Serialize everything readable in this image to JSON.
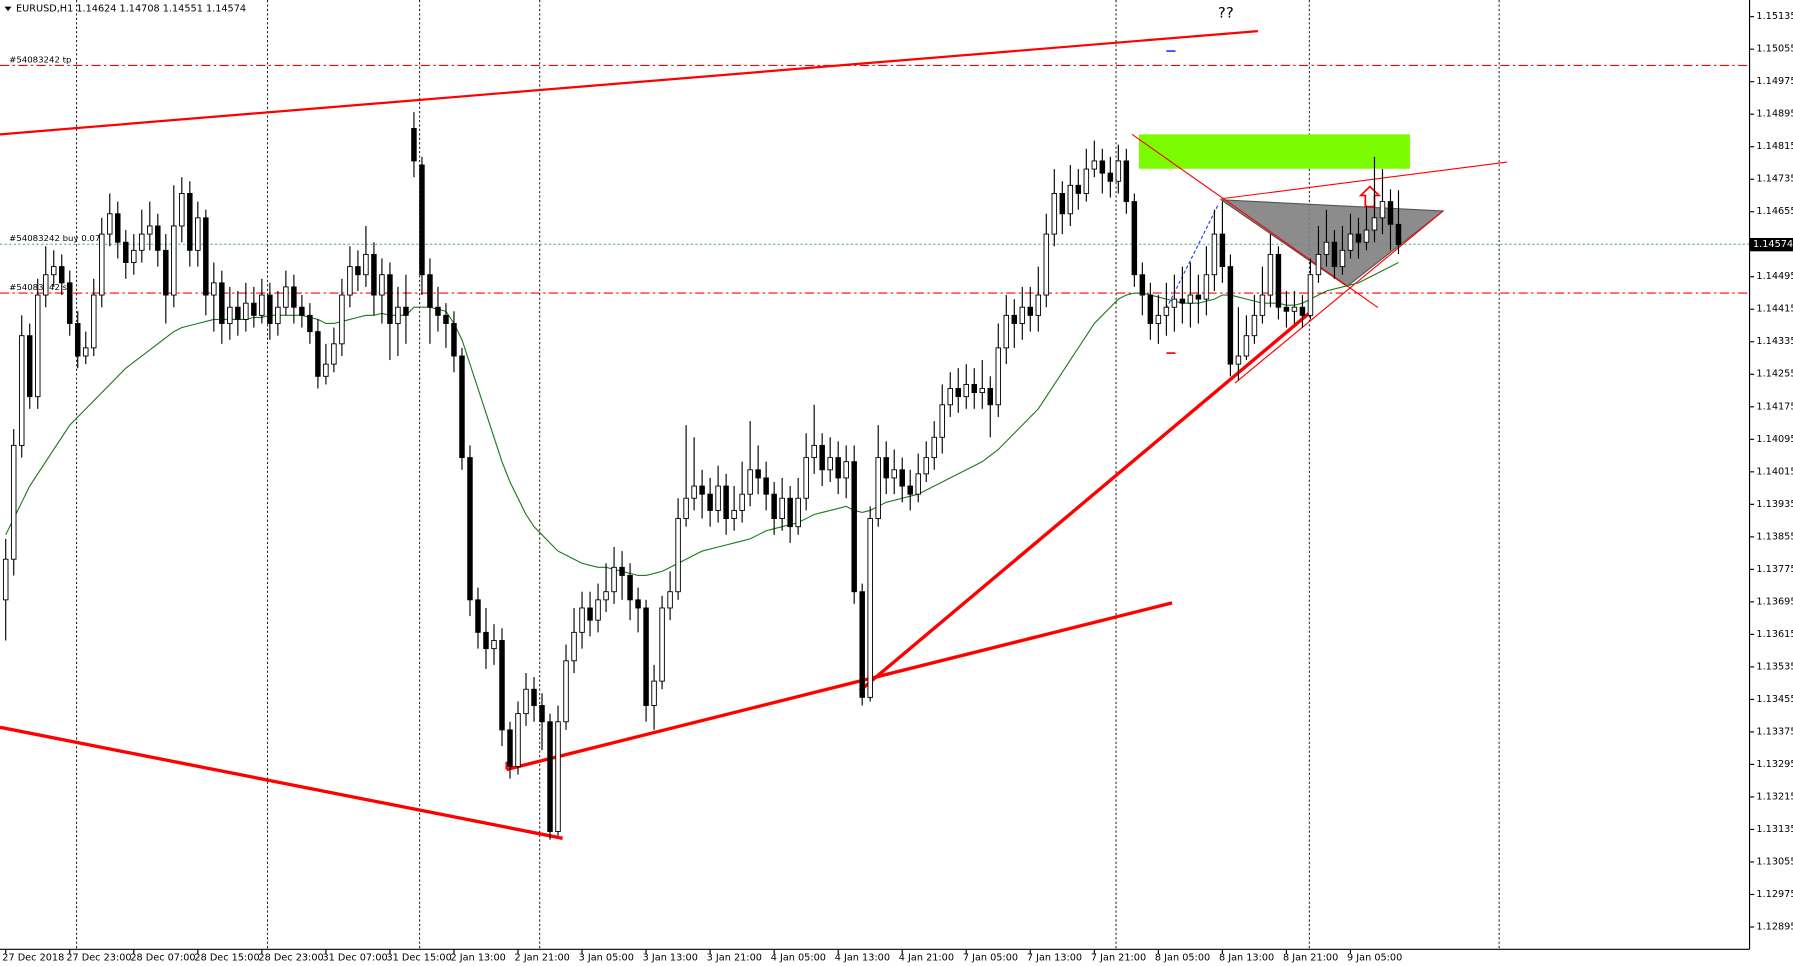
{
  "chart_data": {
    "type": "candlestick",
    "title": "EURUSD,H1  1.14624 1.14708 1.14551 1.14574",
    "annotation": "??",
    "categories": [
      "27 Dec 2018",
      null,
      null,
      null,
      null,
      null,
      null,
      null,
      "27 Dec 23:00",
      null,
      null,
      null,
      null,
      null,
      null,
      null,
      "28 Dec 07:00",
      null,
      null,
      null,
      null,
      null,
      null,
      null,
      "28 Dec 15:00",
      null,
      null,
      null,
      null,
      null,
      null,
      null,
      "28 Dec 23:00",
      null,
      null,
      null,
      null,
      null,
      null,
      null,
      "31 Dec 07:00",
      null,
      null,
      null,
      null,
      null,
      null,
      null,
      "31 Dec 15:00",
      null,
      null,
      null,
      null,
      null,
      null,
      null,
      "2 Jan 13:00",
      null,
      null,
      null,
      null,
      null,
      null,
      null,
      "2 Jan 21:00",
      null,
      null,
      null,
      null,
      null,
      null,
      null,
      "3 Jan 05:00",
      null,
      null,
      null,
      null,
      null,
      null,
      null,
      "3 Jan 13:00",
      null,
      null,
      null,
      null,
      null,
      null,
      null,
      "3 Jan 21:00",
      null,
      null,
      null,
      null,
      null,
      null,
      null,
      "4 Jan 05:00",
      null,
      null,
      null,
      null,
      null,
      null,
      null,
      "4 Jan 13:00",
      null,
      null,
      null,
      null,
      null,
      null,
      null,
      "4 Jan 21:00",
      null,
      null,
      null,
      null,
      null,
      null,
      null,
      "7 Jan 05:00",
      null,
      null,
      null,
      null,
      null,
      null,
      null,
      "7 Jan 13:00",
      null,
      null,
      null,
      null,
      null,
      null,
      null,
      "7 Jan 21:00",
      null,
      null,
      null,
      null,
      null,
      null,
      null,
      "8 Jan 05:00",
      null,
      null,
      null,
      null,
      null,
      null,
      null,
      "8 Jan 13:00",
      null,
      null,
      null,
      null,
      null,
      null,
      null,
      "8 Jan 21:00",
      null,
      null,
      null,
      null,
      null,
      null,
      null,
      "9 Jan 05:00",
      null,
      null,
      null,
      null,
      null,
      null
    ],
    "open": [
      1.137,
      1.138,
      1.1408,
      1.1435,
      1.142,
      1.1445,
      1.145,
      1.1452,
      1.1448,
      1.1438,
      1.143,
      1.1432,
      1.1445,
      1.146,
      1.1465,
      1.1458,
      1.1453,
      1.1456,
      1.146,
      1.1462,
      1.1456,
      1.1445,
      1.1462,
      1.147,
      1.1456,
      1.1464,
      1.1445,
      1.1448,
      1.1438,
      1.1442,
      1.1439,
      1.1443,
      1.144,
      1.1445,
      1.1438,
      1.1442,
      1.1447,
      1.1442,
      1.144,
      1.1436,
      1.1425,
      1.1428,
      1.1433,
      1.1445,
      1.1452,
      1.145,
      1.1455,
      1.1445,
      1.145,
      1.1438,
      1.1442,
      1.1486,
      1.1477,
      1.145,
      1.1442,
      1.144,
      1.1438,
      1.143,
      1.1405,
      1.137,
      1.1362,
      1.1358,
      1.136,
      1.1338,
      1.1329,
      1.1342,
      1.1348,
      1.1344,
      1.134,
      1.1313,
      1.134,
      1.1355,
      1.1362,
      1.1368,
      1.1365,
      1.137,
      1.1372,
      1.1378,
      1.1376,
      1.137,
      1.1368,
      1.1344,
      1.135,
      1.1368,
      1.1372,
      1.139,
      1.1395,
      1.1398,
      1.1396,
      1.1392,
      1.1398,
      1.139,
      1.1392,
      1.1396,
      1.1402,
      1.14,
      1.1396,
      1.139,
      1.1395,
      1.1388,
      1.1395,
      1.1405,
      1.1408,
      1.1402,
      1.1405,
      1.14,
      1.1404,
      1.1372,
      1.1346,
      1.139,
      1.1405,
      1.14,
      1.1402,
      1.1398,
      1.1396,
      1.1401,
      1.1405,
      1.141,
      1.1418,
      1.1422,
      1.142,
      1.1423,
      1.1421,
      1.1422,
      1.1418,
      1.1432,
      1.144,
      1.1438,
      1.1442,
      1.144,
      1.1445,
      1.146,
      1.147,
      1.1465,
      1.1472,
      1.147,
      1.1476,
      1.1478,
      1.1475,
      1.1473,
      1.1478,
      1.1468,
      1.145,
      1.1445,
      1.1438,
      1.144,
      1.1442,
      1.1444,
      1.1443,
      1.1445,
      1.1444,
      1.145,
      1.146,
      1.1452,
      1.1428,
      1.143,
      1.1435,
      1.144,
      1.1445,
      1.1455,
      1.1442,
      1.1441,
      1.1442,
      1.144,
      1.145,
      1.1455,
      1.1458,
      1.1452,
      1.1456,
      1.146,
      1.1458,
      1.1461,
      1.1464,
      1.1468,
      1.14624
    ],
    "high": [
      1.1385,
      1.1412,
      1.144,
      1.1438,
      1.1449,
      1.1457,
      1.1456,
      1.1455,
      1.1451,
      1.1441,
      1.1436,
      1.1449,
      1.1464,
      1.147,
      1.1468,
      1.1461,
      1.146,
      1.1466,
      1.1468,
      1.1465,
      1.146,
      1.1472,
      1.1474,
      1.1473,
      1.1468,
      1.1466,
      1.1453,
      1.1451,
      1.1447,
      1.1446,
      1.1448,
      1.1447,
      1.1449,
      1.1448,
      1.1446,
      1.1451,
      1.145,
      1.1445,
      1.1443,
      1.1439,
      1.1433,
      1.1437,
      1.1449,
      1.1457,
      1.1456,
      1.1462,
      1.1458,
      1.1454,
      1.1453,
      1.1447,
      1.145,
      1.149,
      1.1479,
      1.1454,
      1.1447,
      1.1443,
      1.1441,
      1.1432,
      1.1408,
      1.1373,
      1.1368,
      1.1364,
      1.1363,
      1.134,
      1.1345,
      1.1352,
      1.1351,
      1.1347,
      1.1342,
      1.1344,
      1.1359,
      1.1368,
      1.1372,
      1.1372,
      1.1374,
      1.1379,
      1.1383,
      1.1382,
      1.1379,
      1.1373,
      1.137,
      1.1354,
      1.1371,
      1.1377,
      1.1395,
      1.1413,
      1.141,
      1.1402,
      1.14,
      1.1403,
      1.1401,
      1.1398,
      1.1404,
      1.1414,
      1.1408,
      1.1404,
      1.1399,
      1.14,
      1.1398,
      1.14,
      1.1411,
      1.1418,
      1.1411,
      1.141,
      1.1409,
      1.1408,
      1.1408,
      1.1374,
      1.1393,
      1.1413,
      1.1409,
      1.1407,
      1.1405,
      1.1402,
      1.1406,
      1.1409,
      1.1414,
      1.1423,
      1.1426,
      1.1427,
      1.1428,
      1.1427,
      1.1429,
      1.1425,
      1.1438,
      1.1445,
      1.1444,
      1.1447,
      1.1447,
      1.1452,
      1.1465,
      1.1476,
      1.1473,
      1.1477,
      1.1476,
      1.1481,
      1.1483,
      1.1481,
      1.1479,
      1.1482,
      1.1481,
      1.147,
      1.1453,
      1.1448,
      1.1445,
      1.1448,
      1.145,
      1.1452,
      1.1453,
      1.145,
      1.1457,
      1.1466,
      1.1468,
      1.1455,
      1.1442,
      1.144,
      1.1445,
      1.1452,
      1.146,
      1.1457,
      1.1446,
      1.1446,
      1.1445,
      1.1454,
      1.1462,
      1.1466,
      1.1461,
      1.1462,
      1.1465,
      1.1464,
      1.1467,
      1.1479,
      1.1476,
      1.1471,
      1.14708
    ],
    "low": [
      1.136,
      1.1376,
      1.1405,
      1.1417,
      1.1417,
      1.1442,
      1.1447,
      1.1445,
      1.1435,
      1.1427,
      1.1428,
      1.143,
      1.1442,
      1.1457,
      1.1454,
      1.1449,
      1.145,
      1.1453,
      1.1456,
      1.1452,
      1.1438,
      1.1442,
      1.1458,
      1.1452,
      1.1452,
      1.144,
      1.1436,
      1.1433,
      1.1434,
      1.1435,
      1.1436,
      1.1437,
      1.1438,
      1.1434,
      1.1435,
      1.144,
      1.1438,
      1.1437,
      1.1433,
      1.1422,
      1.1423,
      1.1426,
      1.143,
      1.1442,
      1.1446,
      1.1447,
      1.144,
      1.1438,
      1.1429,
      1.143,
      1.1433,
      1.1474,
      1.1445,
      1.1433,
      1.1436,
      1.1432,
      1.1426,
      1.1402,
      1.1366,
      1.1358,
      1.1353,
      1.1354,
      1.1334,
      1.1326,
      1.1327,
      1.1339,
      1.134,
      1.1333,
      1.1311,
      1.1312,
      1.1338,
      1.1352,
      1.1358,
      1.1361,
      1.1362,
      1.1367,
      1.1369,
      1.137,
      1.1365,
      1.1362,
      1.134,
      1.1338,
      1.1348,
      1.1365,
      1.137,
      1.1388,
      1.1392,
      1.139,
      1.1388,
      1.1389,
      1.1386,
      1.1387,
      1.1389,
      1.1393,
      1.1396,
      1.1392,
      1.1386,
      1.1387,
      1.1384,
      1.1386,
      1.1392,
      1.1401,
      1.1398,
      1.1399,
      1.1396,
      1.1395,
      1.1369,
      1.1344,
      1.1345,
      1.1388,
      1.1396,
      1.1396,
      1.1394,
      1.1392,
      1.1394,
      1.1399,
      1.1402,
      1.1406,
      1.1415,
      1.1416,
      1.1417,
      1.1417,
      1.1417,
      1.141,
      1.1415,
      1.1428,
      1.1432,
      1.1434,
      1.1436,
      1.1436,
      1.1442,
      1.1457,
      1.146,
      1.1462,
      1.1466,
      1.1468,
      1.1474,
      1.147,
      1.1469,
      1.147,
      1.1465,
      1.1447,
      1.144,
      1.1434,
      1.1433,
      1.1435,
      1.1436,
      1.1438,
      1.1437,
      1.1438,
      1.144,
      1.1446,
      1.1448,
      1.1425,
      1.1424,
      1.1429,
      1.1433,
      1.1438,
      1.1442,
      1.1439,
      1.1437,
      1.1438,
      1.1437,
      1.1439,
      1.1448,
      1.1452,
      1.1449,
      1.145,
      1.1454,
      1.1454,
      1.1456,
      1.1458,
      1.146,
      1.1456,
      1.14551
    ],
    "close": [
      1.138,
      1.1408,
      1.1435,
      1.142,
      1.1445,
      1.145,
      1.1452,
      1.1448,
      1.1438,
      1.143,
      1.1432,
      1.1445,
      1.146,
      1.1465,
      1.1458,
      1.1453,
      1.1456,
      1.146,
      1.1462,
      1.1456,
      1.1445,
      1.1462,
      1.147,
      1.1456,
      1.1464,
      1.1445,
      1.1448,
      1.1438,
      1.1442,
      1.1439,
      1.1443,
      1.144,
      1.1445,
      1.1438,
      1.1442,
      1.1447,
      1.1442,
      1.144,
      1.1436,
      1.1425,
      1.1428,
      1.1433,
      1.1445,
      1.1452,
      1.145,
      1.1455,
      1.1445,
      1.145,
      1.1438,
      1.1442,
      1.144,
      1.1478,
      1.145,
      1.1442,
      1.144,
      1.1438,
      1.143,
      1.1405,
      1.137,
      1.1362,
      1.1358,
      1.136,
      1.1338,
      1.1329,
      1.1342,
      1.1348,
      1.1344,
      1.134,
      1.1313,
      1.134,
      1.1355,
      1.1362,
      1.1368,
      1.1365,
      1.137,
      1.1372,
      1.1378,
      1.1376,
      1.137,
      1.1368,
      1.1344,
      1.135,
      1.1368,
      1.1372,
      1.139,
      1.1395,
      1.1398,
      1.1396,
      1.1392,
      1.1398,
      1.139,
      1.1392,
      1.1396,
      1.1402,
      1.14,
      1.1396,
      1.139,
      1.1395,
      1.1388,
      1.1395,
      1.1405,
      1.1408,
      1.1402,
      1.1405,
      1.14,
      1.1404,
      1.1372,
      1.1346,
      1.139,
      1.1405,
      1.14,
      1.1402,
      1.1398,
      1.1396,
      1.1401,
      1.1405,
      1.141,
      1.1418,
      1.1422,
      1.142,
      1.1423,
      1.1421,
      1.1422,
      1.1418,
      1.1432,
      1.144,
      1.1438,
      1.1442,
      1.144,
      1.1445,
      1.146,
      1.147,
      1.1465,
      1.1472,
      1.147,
      1.1476,
      1.1478,
      1.1475,
      1.1473,
      1.1478,
      1.1468,
      1.145,
      1.1445,
      1.1438,
      1.144,
      1.1442,
      1.1444,
      1.1443,
      1.1445,
      1.1444,
      1.145,
      1.146,
      1.1452,
      1.1428,
      1.143,
      1.1435,
      1.144,
      1.1445,
      1.1455,
      1.1442,
      1.1441,
      1.1442,
      1.144,
      1.145,
      1.1455,
      1.1458,
      1.1452,
      1.1456,
      1.146,
      1.1458,
      1.1461,
      1.1464,
      1.1468,
      1.14624,
      1.14574
    ],
    "up_color": "#ffffff",
    "down_color": "#000000",
    "ma": {
      "color": "#1f7a1f",
      "values": [
        1.1386,
        1.139,
        1.1394,
        1.1398,
        1.1401,
        1.1404,
        1.1407,
        1.141,
        1.1413,
        1.1415,
        1.1417,
        1.1419,
        1.1421,
        1.1423,
        1.1425,
        1.1427,
        1.14285,
        1.143,
        1.14315,
        1.1433,
        1.14345,
        1.1436,
        1.1437,
        1.14375,
        1.1438,
        1.14385,
        1.1439,
        1.1439,
        1.1439,
        1.1439,
        1.1439,
        1.14395,
        1.14395,
        1.144,
        1.144,
        1.144,
        1.144,
        1.144,
        1.14395,
        1.1439,
        1.1438,
        1.1438,
        1.14385,
        1.1439,
        1.14395,
        1.144,
        1.144,
        1.14405,
        1.144,
        1.144,
        1.144,
        1.1442,
        1.1442,
        1.1442,
        1.14415,
        1.1441,
        1.1438,
        1.1434,
        1.1428,
        1.1422,
        1.1416,
        1.141,
        1.1404,
        1.1399,
        1.1395,
        1.1391,
        1.1388,
        1.1386,
        1.1384,
        1.1382,
        1.1381,
        1.138,
        1.1379,
        1.13785,
        1.1378,
        1.1378,
        1.13775,
        1.1377,
        1.13765,
        1.1376,
        1.1376,
        1.13765,
        1.1377,
        1.1378,
        1.1379,
        1.138,
        1.1381,
        1.1382,
        1.13825,
        1.1383,
        1.13835,
        1.1384,
        1.13845,
        1.1385,
        1.1386,
        1.1387,
        1.13875,
        1.1388,
        1.13885,
        1.1389,
        1.139,
        1.1391,
        1.13915,
        1.1392,
        1.13925,
        1.1393,
        1.1392,
        1.13915,
        1.1392,
        1.1393,
        1.1394,
        1.13945,
        1.1395,
        1.13955,
        1.1396,
        1.1397,
        1.1398,
        1.1399,
        1.14,
        1.1401,
        1.1402,
        1.1403,
        1.1404,
        1.14055,
        1.1407,
        1.1409,
        1.1411,
        1.1413,
        1.1415,
        1.1417,
        1.142,
        1.1423,
        1.1426,
        1.1429,
        1.1432,
        1.1435,
        1.1438,
        1.144,
        1.1442,
        1.1444,
        1.1445,
        1.14455,
        1.14455,
        1.1445,
        1.14445,
        1.1444,
        1.14435,
        1.1443,
        1.1443,
        1.1443,
        1.14435,
        1.1444,
        1.1445,
        1.1445,
        1.14445,
        1.1444,
        1.14435,
        1.1443,
        1.1443,
        1.1443,
        1.14425,
        1.14425,
        1.1443,
        1.1444,
        1.1445,
        1.1446,
        1.14465,
        1.1447,
        1.14475,
        1.1448,
        1.1449,
        1.145,
        1.1451,
        1.1452,
        1.1453
      ]
    },
    "levels": [
      {
        "label": "#54083242 tp",
        "value": 1.15015,
        "color": "#ff0000"
      },
      {
        "label": "#54083242 buy 0.07",
        "value": 1.14575,
        "color": "#3cb371"
      },
      {
        "label": "#54083242 sl",
        "value": 1.14455,
        "color": "#ff0000"
      }
    ],
    "last_price": 1.14574,
    "ylim": [
      1.1284,
      1.15176
    ],
    "yticks": [
      1.15135,
      1.15055,
      1.14975,
      1.14895,
      1.14815,
      1.14735,
      1.14655,
      1.14575,
      1.14495,
      1.14415,
      1.14335,
      1.14255,
      1.14175,
      1.14095,
      1.14015,
      1.13935,
      1.13855,
      1.13775,
      1.13695,
      1.13615,
      1.13535,
      1.13455,
      1.13375,
      1.13295,
      1.13215,
      1.13135,
      1.13055,
      1.12975,
      1.12895
    ]
  }
}
